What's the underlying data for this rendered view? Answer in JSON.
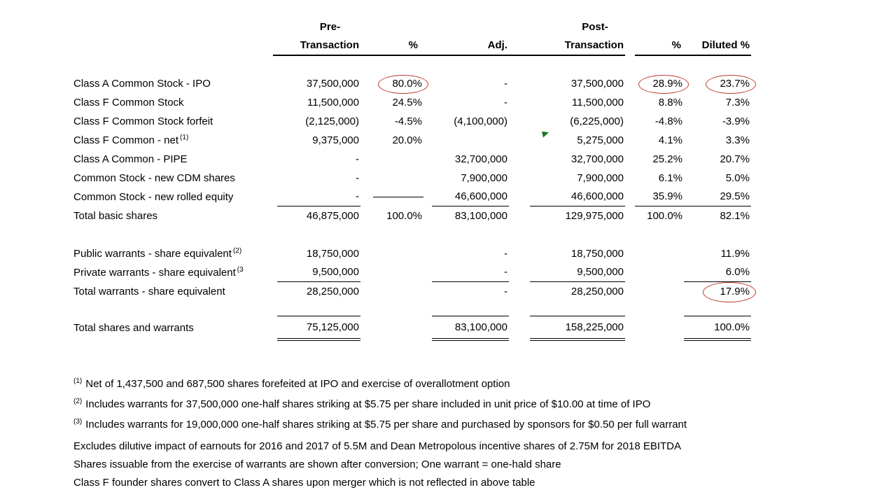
{
  "table": {
    "header": {
      "pre_top": "Pre-",
      "pre_bottom": "Transaction",
      "pct1": "%",
      "adj": "Adj.",
      "post_top": "Post-",
      "post_bottom": "Transaction",
      "pct2": "%",
      "diluted": "Diluted %"
    },
    "rows": [
      {
        "spacer": true
      },
      {
        "label": "Class A Common Stock - IPO",
        "pre": "37,500,000",
        "pct1": "80.0%",
        "adj": "-",
        "post": "37,500,000",
        "pct2": "28.9%",
        "diluted": "23.7%"
      },
      {
        "label": "Class F Common Stock",
        "pre": "11,500,000",
        "pct1": "24.5%",
        "adj": "-",
        "post": "11,500,000",
        "pct2": "8.8%",
        "diluted": "7.3%"
      },
      {
        "label": "Class F Common Stock forfeit",
        "pre": "(2,125,000)",
        "pct1": "-4.5%",
        "adj": "(4,100,000)",
        "post": "(6,225,000)",
        "pct2": "-4.8%",
        "diluted": "-3.9%"
      },
      {
        "label": "Class F Common - net",
        "sup": "(1)",
        "pre": "9,375,000",
        "pct1": "20.0%",
        "adj": "",
        "post": "5,275,000",
        "pct2": "4.1%",
        "diluted": "3.3%"
      },
      {
        "label": "Class A Common - PIPE",
        "pre": "-",
        "pct1": "",
        "adj": "32,700,000",
        "post": "32,700,000",
        "pct2": "25.2%",
        "diluted": "20.7%"
      },
      {
        "label": "Common Stock - new CDM shares",
        "pre": "-",
        "pct1": "",
        "adj": "7,900,000",
        "post": "7,900,000",
        "pct2": "6.1%",
        "diluted": "5.0%"
      },
      {
        "label": "Common Stock - new rolled equity",
        "pre": "-",
        "pct1": "",
        "adj": "46,600,000",
        "post": "46,600,000",
        "pct2": "35.9%",
        "diluted": "29.5%"
      },
      {
        "label": "Total basic shares",
        "pre": "46,875,000",
        "pct1": "100.0%",
        "adj": "83,100,000",
        "post": "129,975,000",
        "pct2": "100.0%",
        "diluted": "82.1%"
      },
      {
        "spacer": true
      },
      {
        "label": "Public warrants - share equivalent",
        "sup": "(2)",
        "pre": "18,750,000",
        "pct1": "",
        "adj": "-",
        "post": "18,750,000",
        "pct2": "",
        "diluted": "11.9%"
      },
      {
        "label": "Private warrants - share equivalent",
        "sup": "(3",
        "pre": "9,500,000",
        "pct1": "",
        "adj": "-",
        "post": "9,500,000",
        "pct2": "",
        "diluted": "6.0%"
      },
      {
        "label": "Total warrants - share equivalent",
        "pre": "28,250,000",
        "pct1": "",
        "adj": "-",
        "post": "28,250,000",
        "pct2": "",
        "diluted": "17.9%"
      },
      {
        "spacer": true
      },
      {
        "label": "Total shares and warrants",
        "pre": "75,125,000",
        "pct1": "",
        "adj": "83,100,000",
        "post": "158,225,000",
        "pct2": "",
        "diluted": "100.0%"
      }
    ]
  },
  "annotations": {
    "circles": [
      {
        "row": 1,
        "col": 2
      },
      {
        "row": 1,
        "col": 5
      },
      {
        "row": 1,
        "col": 6
      },
      {
        "row": 12,
        "col": 6
      }
    ],
    "green_marker": {
      "row": 4,
      "col": 4
    }
  },
  "footnotes": [
    {
      "sup": "(1)",
      "text": "Net of 1,437,500 and 687,500 shares forefeited at IPO and exercise of overallotment option"
    },
    {
      "sup": "(2)",
      "text": "Includes warrants for 37,500,000 one-half shares striking at $5.75 per share included in unit price of $10.00 at time of IPO"
    },
    {
      "sup": "(3)",
      "text": "Includes warrants for 19,000,000 one-half shares striking at $5.75 per share and purchased by sponsors for $0.50 per full warrant"
    },
    {
      "sup": "",
      "text": "Excludes dilutive impact of earnouts for 2016 and 2017 of 5.5M and Dean Metropolous incentive shares of 2.75M for 2018 EBITDA"
    },
    {
      "sup": "",
      "text": "Shares issuable from the exercise of warrants are shown after conversion; One warrant = one-hald share"
    },
    {
      "sup": "",
      "text": "Class F founder shares convert to Class A shares upon merger which is not reflected in above table"
    }
  ],
  "colors": {
    "circle_red": "#c0392b",
    "marker_green": "#1d7a1d",
    "text": "#000000"
  }
}
